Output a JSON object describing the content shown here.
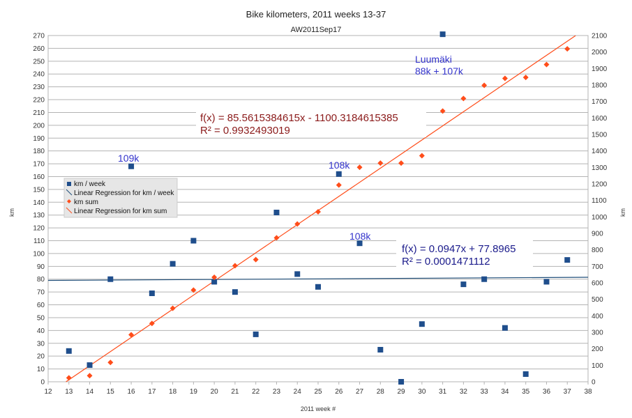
{
  "chart_data": {
    "type": "scatter",
    "title": "Bike kilometers, 2011 weeks 13-37",
    "subtitle": "AW2011Sep17",
    "xlabel": "2011 week #",
    "ylabel_left": "km",
    "ylabel_right": "km",
    "xlim": [
      12,
      38
    ],
    "ylim_left": [
      0,
      270
    ],
    "ylim_right": [
      0,
      2100
    ],
    "x_ticks": [
      12,
      13,
      14,
      15,
      16,
      17,
      18,
      19,
      20,
      21,
      22,
      23,
      24,
      25,
      26,
      27,
      28,
      29,
      30,
      31,
      32,
      33,
      34,
      35,
      36,
      37,
      38
    ],
    "y_left_ticks": [
      0,
      10,
      20,
      30,
      40,
      50,
      60,
      70,
      80,
      90,
      100,
      110,
      120,
      130,
      140,
      150,
      160,
      170,
      180,
      190,
      200,
      210,
      220,
      230,
      240,
      250,
      260,
      270
    ],
    "y_right_ticks": [
      0,
      100,
      200,
      300,
      400,
      500,
      600,
      700,
      800,
      900,
      1000,
      1100,
      1200,
      1300,
      1400,
      1500,
      1600,
      1700,
      1800,
      1900,
      2000,
      2100
    ],
    "grid": true,
    "legend_position": "left",
    "colors": {
      "km_week": "#1f4e8c",
      "km_sum": "#ff4d1a",
      "km_week_line": "#1f4e79",
      "km_sum_line": "#ff4d1a",
      "eq_sum": "#8b1a1a",
      "eq_week": "#1a1a8b",
      "annotation": "#3333cc"
    },
    "series": [
      {
        "name": "km / week",
        "axis": "left",
        "marker": "square",
        "x": [
          13,
          14,
          15,
          16,
          17,
          18,
          19,
          20,
          21,
          22,
          23,
          24,
          25,
          26,
          27,
          28,
          29,
          30,
          31,
          32,
          33,
          34,
          35,
          36,
          37
        ],
        "values": [
          24,
          13,
          80,
          168,
          69,
          92,
          110,
          78,
          70,
          37,
          132,
          84,
          74,
          162,
          108,
          25,
          0,
          45,
          271,
          76,
          80,
          42,
          6,
          78,
          95
        ]
      },
      {
        "name": "km sum",
        "axis": "right",
        "marker": "diamond",
        "x": [
          13,
          14,
          15,
          16,
          17,
          18,
          19,
          20,
          21,
          22,
          23,
          24,
          25,
          26,
          27,
          28,
          29,
          30,
          31,
          32,
          33,
          34,
          35,
          36,
          37
        ],
        "values": [
          24,
          37,
          117,
          285,
          354,
          446,
          556,
          634,
          704,
          741,
          873,
          957,
          1031,
          1193,
          1301,
          1326,
          1326,
          1371,
          1642,
          1718,
          1798,
          1840,
          1846,
          1924,
          2019
        ]
      }
    ],
    "trendlines": [
      {
        "name": "Linear Regression for km / week",
        "axis": "left",
        "slope": 0.0947,
        "intercept": 77.8965
      },
      {
        "name": "Linear Regression for km sum",
        "axis": "right",
        "slope": 85.5615384615,
        "intercept": -1100.3184615385
      }
    ],
    "equations": {
      "sum_eq": "f(x) = 85.5615384615x - 1100.3184615385",
      "sum_r2": "R² = 0.9932493019",
      "week_eq": "f(x) = 0.0947x + 77.8965",
      "week_r2": "R² = 0.0001471112"
    },
    "annotations": [
      {
        "text": "109k",
        "x": 16,
        "y": 168
      },
      {
        "text": "108k",
        "x": 26,
        "y": 162
      },
      {
        "text": "108k",
        "x": 27,
        "y": 108
      }
    ],
    "annotation_luumaki": {
      "line1": "Luumäki",
      "line2": "88k + 107k"
    }
  }
}
